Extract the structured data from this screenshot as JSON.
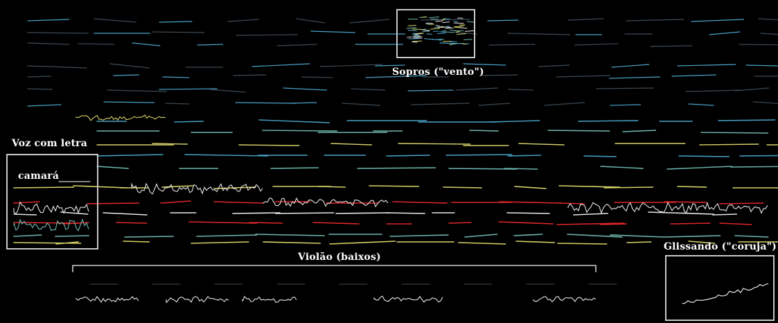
{
  "labels": {
    "sopros": "Sopros (\"vento\")",
    "voz": "Voz com letra",
    "camara": "camará",
    "violao": "Violão (baixos)",
    "glissando": "Glissando (\"coruja\")"
  },
  "colors": {
    "background": "#000000",
    "annotation": "#ffffff",
    "box_stroke": "#c9c9c9",
    "trace_blue": "#4aa3c8",
    "trace_teal": "#6fb8b0",
    "trace_yellow": "#d7d36a",
    "trace_red": "#e0262a",
    "trace_white": "#e8e8e8"
  }
}
